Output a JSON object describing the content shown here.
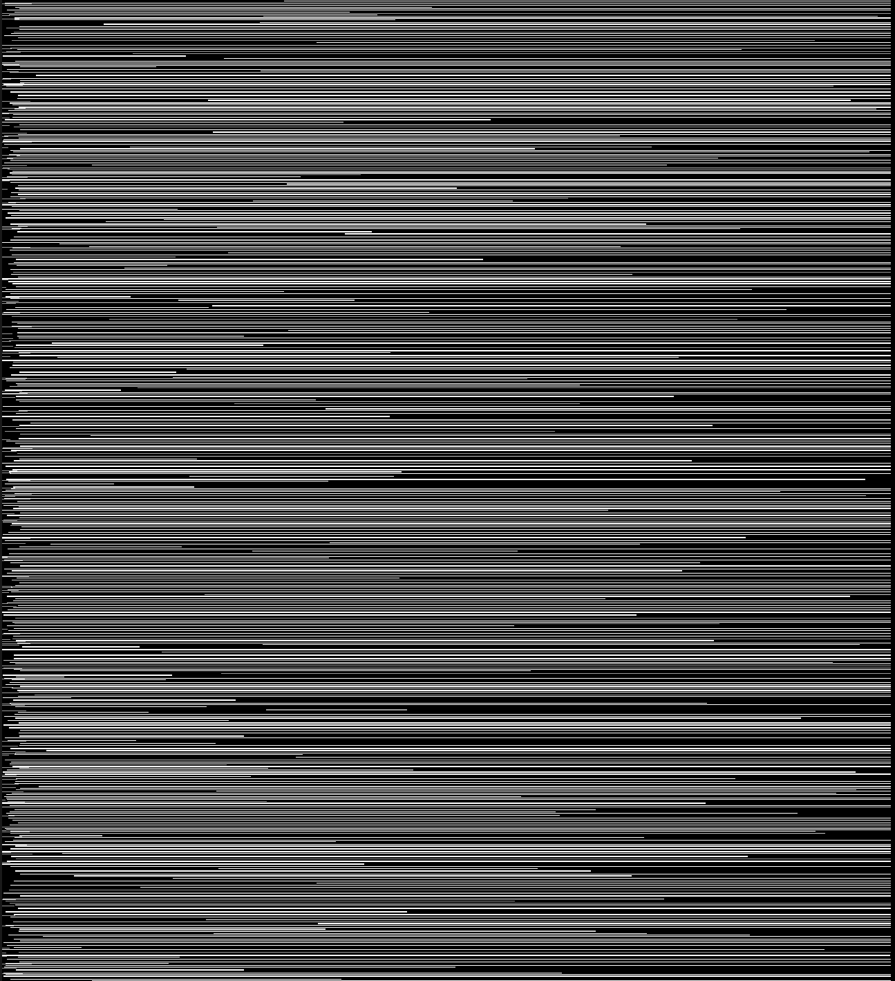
{
  "image": {
    "description_type": "corrupted-scanline-noise",
    "background_color": "#000000",
    "line_colors": [
      "#ffffff",
      "#9a9a9a",
      "#c8c8c8"
    ],
    "visible_text": []
  }
}
